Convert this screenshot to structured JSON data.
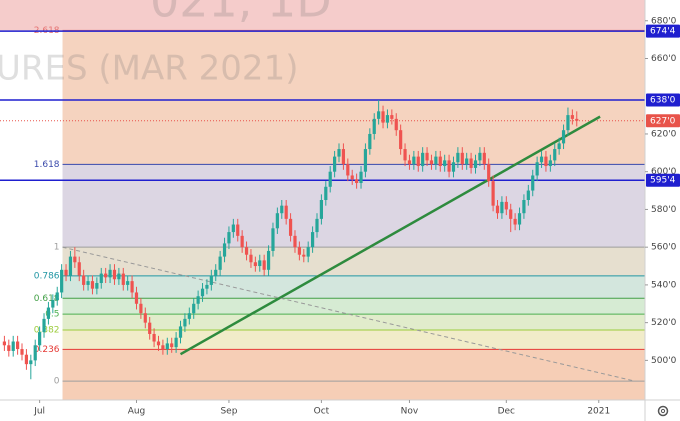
{
  "chart_data": {
    "type": "candlestick",
    "watermark": [
      "021, 1D",
      "URES (MAR 2021)"
    ],
    "x": [
      -8,
      -7,
      -6,
      -5,
      -4,
      -3,
      -2,
      -1,
      0,
      1,
      2,
      3,
      4,
      5,
      6,
      7,
      8,
      9,
      10,
      11,
      12,
      13,
      14,
      15,
      16,
      17,
      18,
      19,
      20,
      21,
      22,
      23,
      24,
      25,
      26,
      27,
      28,
      29,
      30,
      31,
      32,
      33,
      34,
      35,
      36,
      37,
      38,
      39,
      40,
      41,
      42,
      43,
      44,
      45,
      46,
      47,
      48,
      49,
      50,
      51,
      52,
      53,
      54,
      55,
      56,
      57,
      58,
      59,
      60,
      61,
      62,
      63,
      64,
      65,
      66,
      67,
      68,
      69,
      70,
      71,
      72,
      73,
      74,
      75,
      76,
      77,
      78,
      79,
      80,
      81,
      82,
      83,
      84,
      85,
      86,
      87,
      88,
      89,
      90,
      91,
      92,
      93,
      94,
      95,
      96,
      97,
      98,
      99,
      100,
      101,
      102,
      103,
      104,
      105,
      106,
      107,
      108,
      109,
      110,
      111,
      112,
      113,
      114,
      115,
      116,
      117,
      118,
      119,
      120,
      121,
      122
    ],
    "candles": [
      [
        510,
        513,
        505,
        508
      ],
      [
        508,
        511,
        502,
        505
      ],
      [
        505,
        513,
        502,
        510
      ],
      [
        510,
        513,
        503,
        506
      ],
      [
        506,
        509,
        500,
        503
      ],
      [
        503,
        506,
        495,
        498
      ],
      [
        498,
        503,
        490,
        500
      ],
      [
        500,
        511,
        497,
        508
      ],
      [
        508,
        518,
        505,
        515
      ],
      [
        515,
        525,
        512,
        522
      ],
      [
        522,
        531,
        519,
        528
      ],
      [
        528,
        535,
        525,
        532
      ],
      [
        532,
        539,
        529,
        536
      ],
      [
        536,
        551,
        533,
        548
      ],
      [
        548,
        551,
        542,
        545
      ],
      [
        545,
        558,
        542,
        555
      ],
      [
        555,
        560,
        549,
        552
      ],
      [
        552,
        555,
        542,
        545
      ],
      [
        545,
        548,
        537,
        540
      ],
      [
        540,
        545,
        537,
        542
      ],
      [
        542,
        545,
        535,
        538
      ],
      [
        538,
        544,
        535,
        541
      ],
      [
        541,
        549,
        538,
        546
      ],
      [
        546,
        549,
        541,
        544
      ],
      [
        544,
        551,
        541,
        548
      ],
      [
        548,
        551,
        540,
        543
      ],
      [
        543,
        549,
        540,
        546
      ],
      [
        546,
        549,
        537,
        540
      ],
      [
        540,
        545,
        537,
        542
      ],
      [
        542,
        545,
        533,
        536
      ],
      [
        536,
        539,
        527,
        530
      ],
      [
        530,
        533,
        522,
        525
      ],
      [
        525,
        528,
        517,
        520
      ],
      [
        520,
        523,
        511,
        514
      ],
      [
        514,
        517,
        507,
        510
      ],
      [
        510,
        513,
        505,
        508
      ],
      [
        508,
        511,
        503,
        506
      ],
      [
        506,
        512,
        503,
        509
      ],
      [
        509,
        512,
        504,
        507
      ],
      [
        507,
        515,
        504,
        512
      ],
      [
        512,
        521,
        509,
        518
      ],
      [
        518,
        525,
        515,
        522
      ],
      [
        522,
        528,
        519,
        525
      ],
      [
        525,
        533,
        522,
        530
      ],
      [
        530,
        537,
        527,
        534
      ],
      [
        534,
        541,
        531,
        538
      ],
      [
        538,
        543,
        535,
        540
      ],
      [
        540,
        548,
        537,
        545
      ],
      [
        545,
        551,
        542,
        548
      ],
      [
        548,
        558,
        545,
        555
      ],
      [
        555,
        565,
        552,
        562
      ],
      [
        562,
        571,
        559,
        568
      ],
      [
        568,
        575,
        565,
        572
      ],
      [
        572,
        575,
        563,
        566
      ],
      [
        566,
        569,
        557,
        560
      ],
      [
        560,
        563,
        553,
        556
      ],
      [
        556,
        559,
        549,
        552
      ],
      [
        552,
        555,
        547,
        550
      ],
      [
        550,
        556,
        547,
        553
      ],
      [
        553,
        556,
        545,
        548
      ],
      [
        548,
        561,
        545,
        558
      ],
      [
        558,
        573,
        555,
        570
      ],
      [
        570,
        581,
        567,
        578
      ],
      [
        578,
        585,
        575,
        582
      ],
      [
        582,
        585,
        572,
        575
      ],
      [
        575,
        578,
        563,
        566
      ],
      [
        566,
        569,
        557,
        560
      ],
      [
        560,
        563,
        553,
        556
      ],
      [
        556,
        559,
        552,
        555
      ],
      [
        555,
        563,
        552,
        560
      ],
      [
        560,
        571,
        557,
        568
      ],
      [
        568,
        578,
        565,
        575
      ],
      [
        575,
        588,
        572,
        585
      ],
      [
        585,
        595,
        582,
        592
      ],
      [
        592,
        603,
        589,
        600
      ],
      [
        600,
        611,
        597,
        608
      ],
      [
        608,
        615,
        605,
        612
      ],
      [
        612,
        615,
        601,
        604
      ],
      [
        604,
        607,
        595,
        598
      ],
      [
        598,
        601,
        593,
        596
      ],
      [
        596,
        599,
        591,
        594
      ],
      [
        594,
        603,
        591,
        600
      ],
      [
        600,
        615,
        597,
        612
      ],
      [
        612,
        623,
        609,
        620
      ],
      [
        620,
        631,
        617,
        628
      ],
      [
        628,
        638,
        625,
        632
      ],
      [
        632,
        635,
        623,
        626
      ],
      [
        626,
        633,
        623,
        630
      ],
      [
        630,
        633,
        625,
        628
      ],
      [
        628,
        631,
        619,
        622
      ],
      [
        622,
        625,
        609,
        612
      ],
      [
        612,
        615,
        603,
        606
      ],
      [
        606,
        609,
        601,
        604
      ],
      [
        604,
        611,
        601,
        608
      ],
      [
        608,
        611,
        600,
        603
      ],
      [
        603,
        613,
        600,
        610
      ],
      [
        610,
        613,
        603,
        606
      ],
      [
        606,
        609,
        601,
        604
      ],
      [
        604,
        611,
        601,
        608
      ],
      [
        608,
        611,
        600,
        603
      ],
      [
        603,
        609,
        600,
        606
      ],
      [
        606,
        609,
        597,
        600
      ],
      [
        600,
        608,
        597,
        605
      ],
      [
        605,
        613,
        602,
        610
      ],
      [
        610,
        613,
        601,
        604
      ],
      [
        604,
        610,
        601,
        607
      ],
      [
        607,
        610,
        599,
        602
      ],
      [
        602,
        609,
        599,
        606
      ],
      [
        606,
        613,
        603,
        610
      ],
      [
        610,
        613,
        601,
        604
      ],
      [
        604,
        607,
        592,
        595
      ],
      [
        595,
        598,
        579,
        582
      ],
      [
        582,
        585,
        575,
        578
      ],
      [
        578,
        587,
        575,
        584
      ],
      [
        584,
        587,
        577,
        580
      ],
      [
        580,
        583,
        568,
        575
      ],
      [
        575,
        578,
        569,
        572
      ],
      [
        572,
        581,
        569,
        578
      ],
      [
        578,
        588,
        575,
        585
      ],
      [
        585,
        593,
        582,
        590
      ],
      [
        590,
        601,
        587,
        598
      ],
      [
        598,
        608,
        595,
        605
      ],
      [
        605,
        611,
        602,
        608
      ],
      [
        608,
        611,
        600,
        603
      ],
      [
        603,
        609,
        600,
        606
      ],
      [
        606,
        615,
        603,
        612
      ],
      [
        612,
        618,
        609,
        615
      ],
      [
        615,
        625,
        612,
        622
      ],
      [
        622,
        634,
        619,
        630
      ],
      [
        630,
        633,
        625,
        628
      ],
      [
        628,
        632,
        624,
        627
      ]
    ],
    "up_color": "#26a69a",
    "down_color": "#ef5350",
    "xlim": [
      -9,
      137.5
    ],
    "xticks": [
      {
        "value": 0,
        "label": "Jul"
      },
      {
        "value": 22,
        "label": "Aug"
      },
      {
        "value": 43,
        "label": "Sep"
      },
      {
        "value": 64,
        "label": "Oct"
      },
      {
        "value": 84,
        "label": "Nov"
      },
      {
        "value": 106,
        "label": "Dec"
      },
      {
        "value": 127,
        "label": "2021"
      }
    ],
    "ylim": [
      479,
      691
    ],
    "yticks": [
      {
        "value": 680,
        "label": "680'0"
      },
      {
        "value": 660,
        "label": "660'0"
      },
      {
        "value": 620,
        "label": "620'0"
      },
      {
        "value": 600,
        "label": "600'0"
      },
      {
        "value": 580,
        "label": "580'0"
      },
      {
        "value": 560,
        "label": "560'0"
      },
      {
        "value": 540,
        "label": "540'0"
      },
      {
        "value": 520,
        "label": "520'0"
      },
      {
        "value": 500,
        "label": "500'0"
      }
    ],
    "fib": {
      "x_start": 5.2,
      "top_fill": "#f5cccb",
      "levels": [
        {
          "label": "2.618",
          "value": 674.9,
          "color": "#e57373",
          "fill": "#f5d3bf"
        },
        {
          "label": "1.618",
          "value": 603.9,
          "color": "#3949ab",
          "fill": "#dcd6e3"
        },
        {
          "label": "1",
          "value": 560,
          "color": "#9e9e9e",
          "fill": "#e6dfcf"
        },
        {
          "label": "0.786",
          "value": 544.8,
          "color": "#2196a3",
          "fill": "#d3e6dd"
        },
        {
          "label": "0.618",
          "value": 532.9,
          "color": "#43a047",
          "fill": "#d6ebd3"
        },
        {
          "label": "0.5",
          "value": 524.5,
          "color": "#4caf50",
          "fill": "#e1eccb"
        },
        {
          "label": "0.382",
          "value": 516.1,
          "color": "#9ccc3c",
          "fill": "#f1ecc9"
        },
        {
          "label": "0.236",
          "value": 505.8,
          "color": "#e53935",
          "fill": "#f6ceb6"
        },
        {
          "label": "0",
          "value": 489,
          "color": "#9e9e9e",
          "fill": "#f6ceb6"
        }
      ]
    },
    "hlines": [
      {
        "value": 674.5,
        "label": "674'4"
      },
      {
        "value": 638,
        "label": "638'0"
      },
      {
        "value": 595.5,
        "label": "595'4"
      }
    ],
    "hline_color": "#1f1fcf",
    "last_price": {
      "value": 627,
      "label": "627'0",
      "color": "#e8534a"
    },
    "trendlines": [
      {
        "x": [
          32,
          127.3
        ],
        "y": [
          503.3,
          629.2
        ],
        "color": "#2e8b3e",
        "dashed": false
      },
      {
        "x": [
          5.2,
          135.2
        ],
        "y": [
          560,
          489
        ],
        "color": "#999999",
        "dashed": true
      }
    ]
  }
}
